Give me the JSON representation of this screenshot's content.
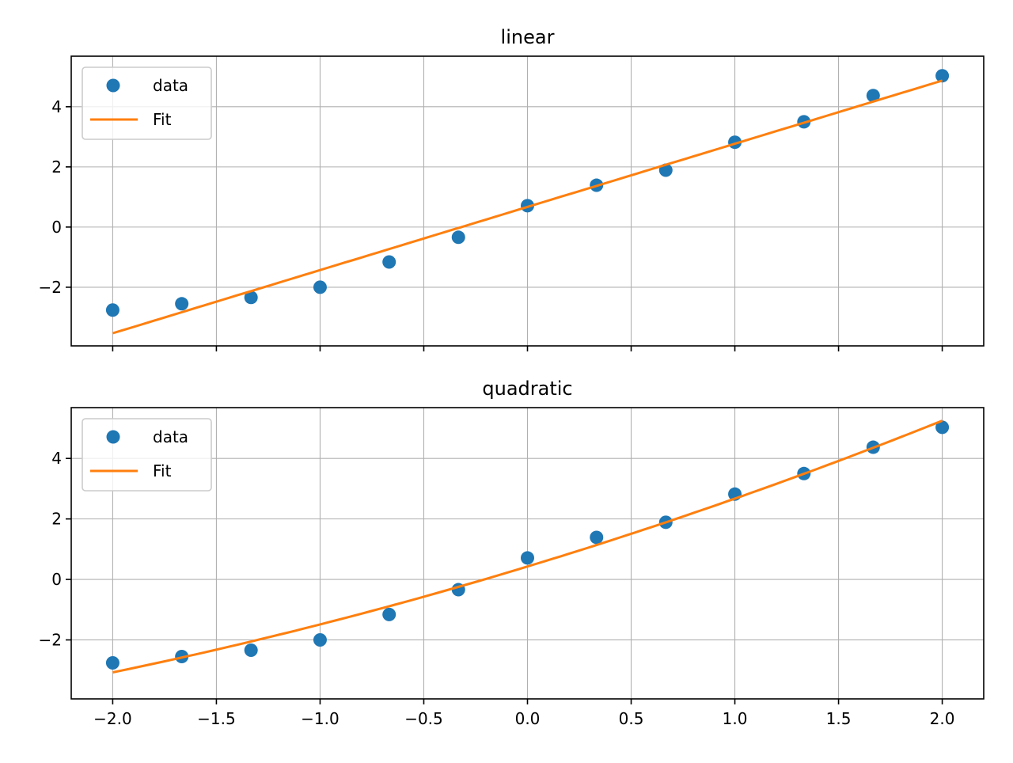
{
  "chart_data": [
    {
      "type": "scatter",
      "title": "linear",
      "xlabel": "",
      "ylabel": "",
      "xlim": [
        -2.2,
        2.2
      ],
      "ylim": [
        -3.95,
        5.68
      ],
      "grid": true,
      "show_xtick_labels": false,
      "xticks": [
        -2.0,
        -1.5,
        -1.0,
        -0.5,
        0.0,
        0.5,
        1.0,
        1.5,
        2.0
      ],
      "xtick_labels": [
        "−2.0",
        "−1.5",
        "−1.0",
        "−0.5",
        "0.0",
        "0.5",
        "1.0",
        "1.5",
        "2.0"
      ],
      "yticks": [
        -2,
        0,
        2,
        4
      ],
      "ytick_labels": [
        "−2",
        "0",
        "2",
        "4"
      ],
      "legend": {
        "placement": "top-left",
        "entries": [
          "data",
          "Fit"
        ]
      },
      "series": [
        {
          "name": "data",
          "kind": "points",
          "color": "#1f77b4",
          "x": [
            -2.0,
            -1.667,
            -1.333,
            -1.0,
            -0.667,
            -0.333,
            0.0,
            0.333,
            0.667,
            1.0,
            1.333,
            1.667,
            2.0
          ],
          "y": [
            -2.76,
            -2.55,
            -2.34,
            -2.0,
            -1.16,
            -0.34,
            0.71,
            1.39,
            1.89,
            2.82,
            3.5,
            4.37,
            5.03
          ]
        },
        {
          "name": "Fit",
          "kind": "line",
          "color": "#ff7f0e",
          "coefficients": [
            0,
            2.1,
            0.67
          ]
        }
      ]
    },
    {
      "type": "scatter",
      "title": "quadratic",
      "xlabel": "",
      "ylabel": "",
      "xlim": [
        -2.2,
        2.2
      ],
      "ylim": [
        -3.95,
        5.68
      ],
      "grid": true,
      "show_xtick_labels": true,
      "xticks": [
        -2.0,
        -1.5,
        -1.0,
        -0.5,
        0.0,
        0.5,
        1.0,
        1.5,
        2.0
      ],
      "xtick_labels": [
        "−2.0",
        "−1.5",
        "−1.0",
        "−0.5",
        "0.0",
        "0.5",
        "1.0",
        "1.5",
        "2.0"
      ],
      "yticks": [
        -2,
        0,
        2,
        4
      ],
      "ytick_labels": [
        "−2",
        "0",
        "2",
        "4"
      ],
      "legend": {
        "placement": "top-left",
        "entries": [
          "data",
          "Fit"
        ]
      },
      "series": [
        {
          "name": "data",
          "kind": "points",
          "color": "#1f77b4",
          "x": [
            -2.0,
            -1.667,
            -1.333,
            -1.0,
            -0.667,
            -0.333,
            0.0,
            0.333,
            0.667,
            1.0,
            1.333,
            1.667,
            2.0
          ],
          "y": [
            -2.76,
            -2.55,
            -2.34,
            -2.0,
            -1.16,
            -0.34,
            0.71,
            1.39,
            1.89,
            2.82,
            3.5,
            4.37,
            5.03
          ]
        },
        {
          "name": "Fit",
          "kind": "line",
          "color": "#ff7f0e",
          "coefficients": [
            0.165,
            2.08,
            0.427
          ]
        }
      ]
    }
  ]
}
